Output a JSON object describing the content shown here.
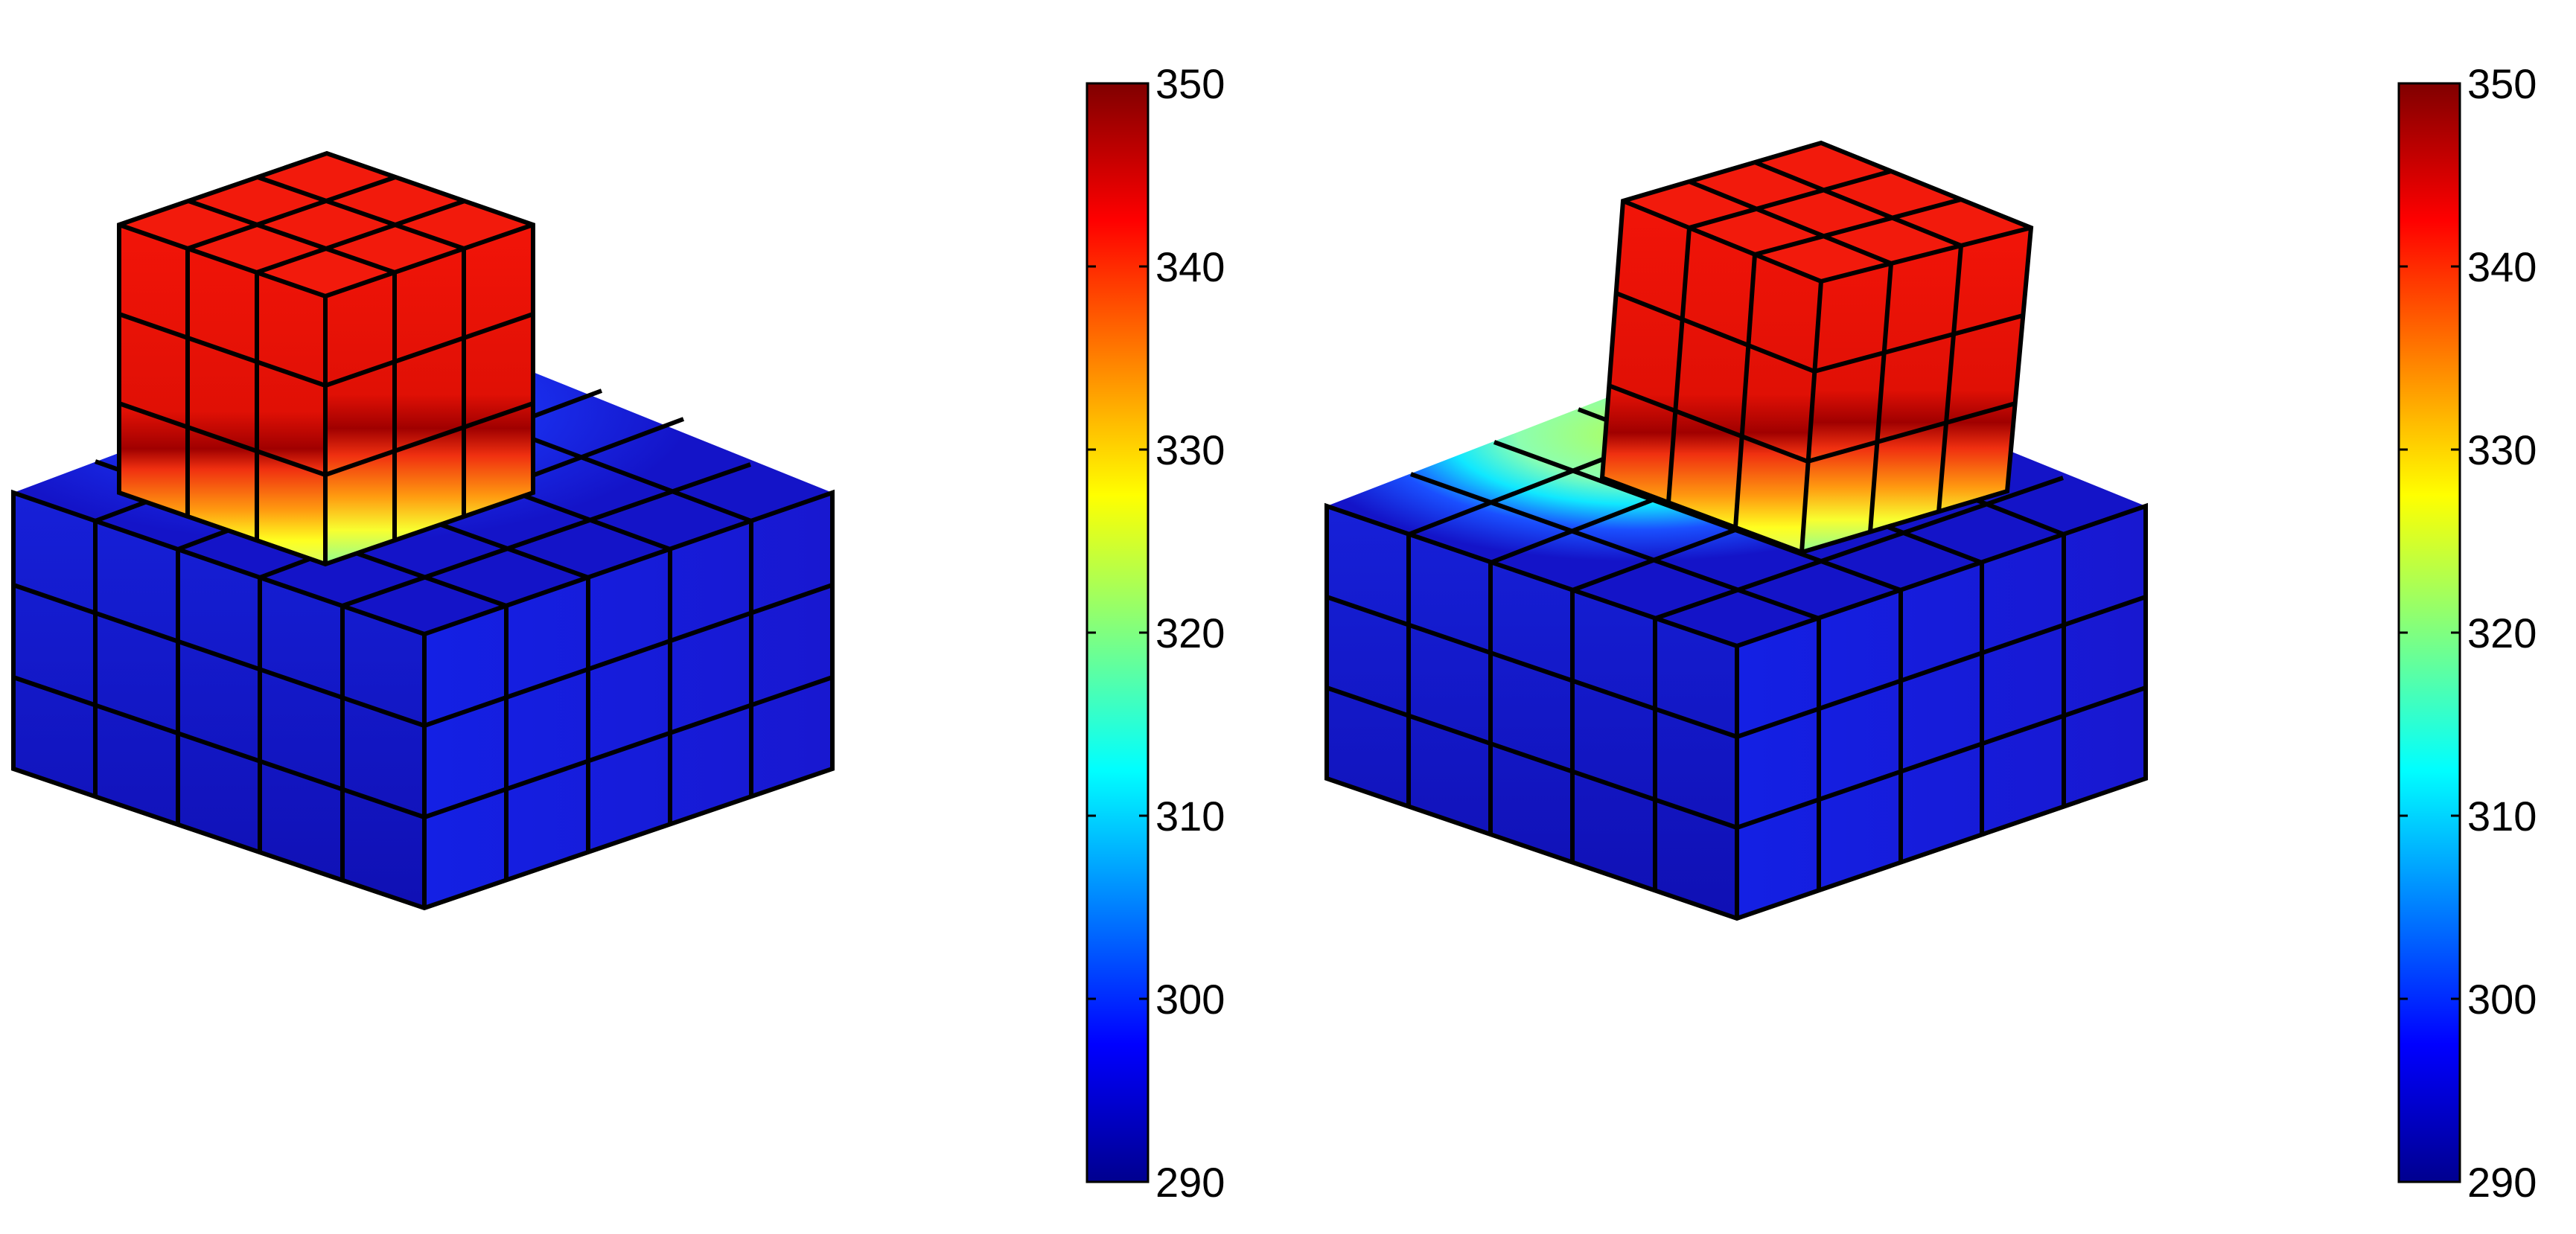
{
  "panels": [
    {
      "name": "panel-left",
      "colorbar": {
        "min": 290,
        "max": 350,
        "ticks": [
          "290",
          "300",
          "310",
          "320",
          "330",
          "340",
          "350"
        ]
      }
    },
    {
      "name": "panel-right",
      "colorbar": {
        "min": 290,
        "max": 350,
        "ticks": [
          "290",
          "300",
          "310",
          "320",
          "330",
          "340",
          "350"
        ]
      }
    }
  ],
  "colormap": "jet",
  "colors": {
    "base_block": "#1a1adc",
    "top_block": "#f01a0a",
    "grid_lines": "#000000",
    "contact_hot": "#b4ff50"
  }
}
